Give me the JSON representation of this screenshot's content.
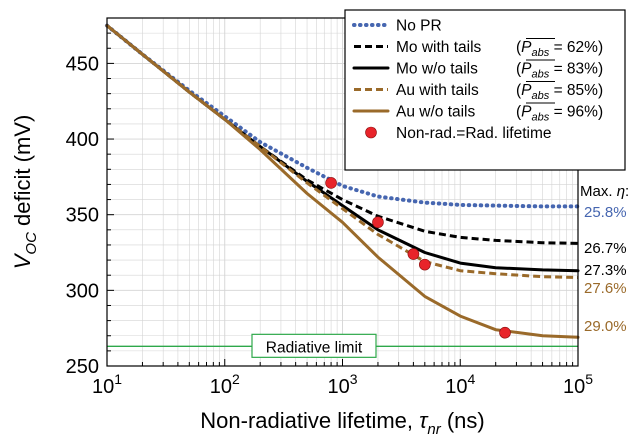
{
  "chart_data": {
    "type": "line",
    "title": "",
    "xlabel": {
      "main": "Non-radiative lifetime, ",
      "symbol": "τ",
      "sub": "nr",
      "unit": " (ns)"
    },
    "ylabel": {
      "main": "V",
      "sub": "OC",
      "rest": " deficit (mV)"
    },
    "x_scale": "log",
    "xlim": [
      10,
      100000
    ],
    "ylim": [
      250,
      480
    ],
    "x_ticks": [
      {
        "base": "10",
        "exp": "1"
      },
      {
        "base": "10",
        "exp": "2"
      },
      {
        "base": "10",
        "exp": "3"
      },
      {
        "base": "10",
        "exp": "4"
      },
      {
        "base": "10",
        "exp": "5"
      }
    ],
    "y_ticks": [
      "250",
      "300",
      "350",
      "400",
      "450"
    ],
    "y_tick_values": [
      250,
      300,
      350,
      400,
      450
    ],
    "grid": true,
    "legend_position": "top-right",
    "series": [
      {
        "name": "No PR",
        "abs_label": "",
        "color": "#4666b0",
        "style": "dotted",
        "x": [
          10,
          20,
          50,
          100,
          200,
          500,
          1000,
          2000,
          5000,
          10000,
          20000,
          50000,
          100000
        ],
        "y": [
          475,
          456,
          432,
          415,
          398,
          381,
          369,
          362,
          358,
          356.5,
          356,
          355.5,
          355.5
        ]
      },
      {
        "name": "Mo with tails",
        "abs_label": "(P",
        "abs_sub": "abs",
        "abs_value": " = 62%)",
        "color": "#000000",
        "style": "dashed",
        "x": [
          10,
          20,
          50,
          100,
          200,
          500,
          1000,
          2000,
          5000,
          10000,
          20000,
          50000,
          100000
        ],
        "y": [
          475,
          456,
          431,
          413,
          395,
          373,
          360,
          349,
          339,
          335,
          333,
          331.5,
          331
        ]
      },
      {
        "name": "Mo w/o tails",
        "abs_label": "(P",
        "abs_sub": "abs",
        "abs_value": " = 83%)",
        "color": "#000000",
        "style": "solid",
        "x": [
          10,
          20,
          50,
          100,
          200,
          500,
          1000,
          2000,
          5000,
          10000,
          20000,
          50000,
          100000
        ],
        "y": [
          475,
          456,
          431,
          413,
          395,
          372,
          356,
          340,
          325,
          318,
          315,
          313.5,
          313
        ]
      },
      {
        "name": "Au with tails",
        "abs_label": "(P",
        "abs_sub": "abs",
        "abs_value": " = 85%)",
        "color": "#9a6a2a",
        "style": "dashed",
        "x": [
          10,
          20,
          50,
          100,
          200,
          500,
          1000,
          2000,
          5000,
          10000,
          20000,
          50000,
          100000
        ],
        "y": [
          475,
          456,
          431,
          413,
          395,
          371,
          354,
          337,
          319,
          313,
          311,
          309,
          308.5
        ]
      },
      {
        "name": "Au w/o tails",
        "abs_label": "(P",
        "abs_sub": "abs",
        "abs_value": " = 96%)",
        "color": "#9a6a2a",
        "style": "solid",
        "x": [
          10,
          20,
          50,
          100,
          200,
          500,
          1000,
          2000,
          5000,
          10000,
          20000,
          50000,
          100000
        ],
        "y": [
          475,
          456,
          431,
          413,
          393,
          364,
          345,
          322,
          296,
          283,
          274,
          270,
          269
        ]
      }
    ],
    "markers": {
      "name": "Non-rad.=Rad. lifetime",
      "color": "#e8242a",
      "points": [
        [
          800,
          371
        ],
        [
          2000,
          345
        ],
        [
          4000,
          324
        ],
        [
          5000,
          317
        ],
        [
          24000,
          272
        ]
      ]
    },
    "reference_line": {
      "label": "Radiative limit",
      "y": 263,
      "color": "#2ea84a"
    },
    "efficiency_header": {
      "text": "Max. ",
      "symbol": "η",
      "suffix": ":"
    },
    "efficiencies": [
      {
        "text": "25.8%",
        "color": "#4666b0",
        "y": 355.5
      },
      {
        "text": "26.7%",
        "color": "#000000",
        "y": 331
      },
      {
        "text": "27.3%",
        "color": "#000000",
        "y": 313
      },
      {
        "text": "27.6%",
        "color": "#9a6a2a",
        "y": 308.5
      },
      {
        "text": "29.0%",
        "color": "#9a6a2a",
        "y": 269
      }
    ]
  }
}
